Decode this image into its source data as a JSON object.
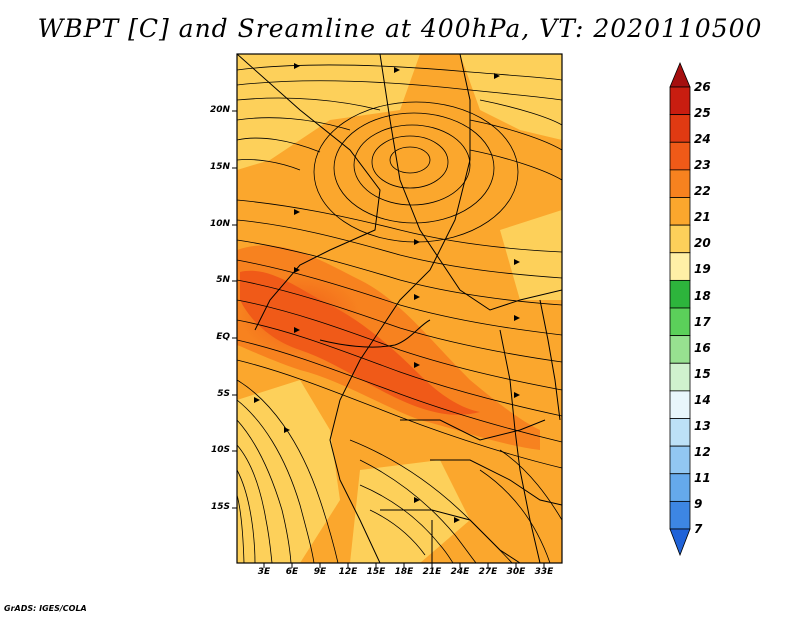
{
  "title": "WBPT [C] and Sreamline at 400hPa, VT: 2020110500",
  "credit": "GrADS: IGES/COLA",
  "map": {
    "lat_labels": [
      "20N",
      "15N",
      "10N",
      "5N",
      "EQ",
      "5S",
      "10S",
      "15S"
    ],
    "lon_labels": [
      "3E",
      "6E",
      "9E",
      "12E",
      "15E",
      "18E",
      "21E",
      "24E",
      "27E",
      "30E",
      "33E"
    ]
  },
  "colorbar": {
    "labels": [
      "26",
      "25",
      "24",
      "23",
      "22",
      "21",
      "20",
      "19",
      "18",
      "17",
      "16",
      "15",
      "14",
      "13",
      "12",
      "11",
      "9",
      "7"
    ],
    "colors": [
      "#a50f0f",
      "#c81d10",
      "#e03a12",
      "#f05a18",
      "#f7821f",
      "#fba72d",
      "#fdd05a",
      "#fff0a6",
      "#2db43c",
      "#5bd05a",
      "#97e190",
      "#d0f2ce",
      "#e8f6fb",
      "#bde1f7",
      "#92c7f2",
      "#65a9ec",
      "#3d86e3",
      "#2063d8"
    ]
  }
}
